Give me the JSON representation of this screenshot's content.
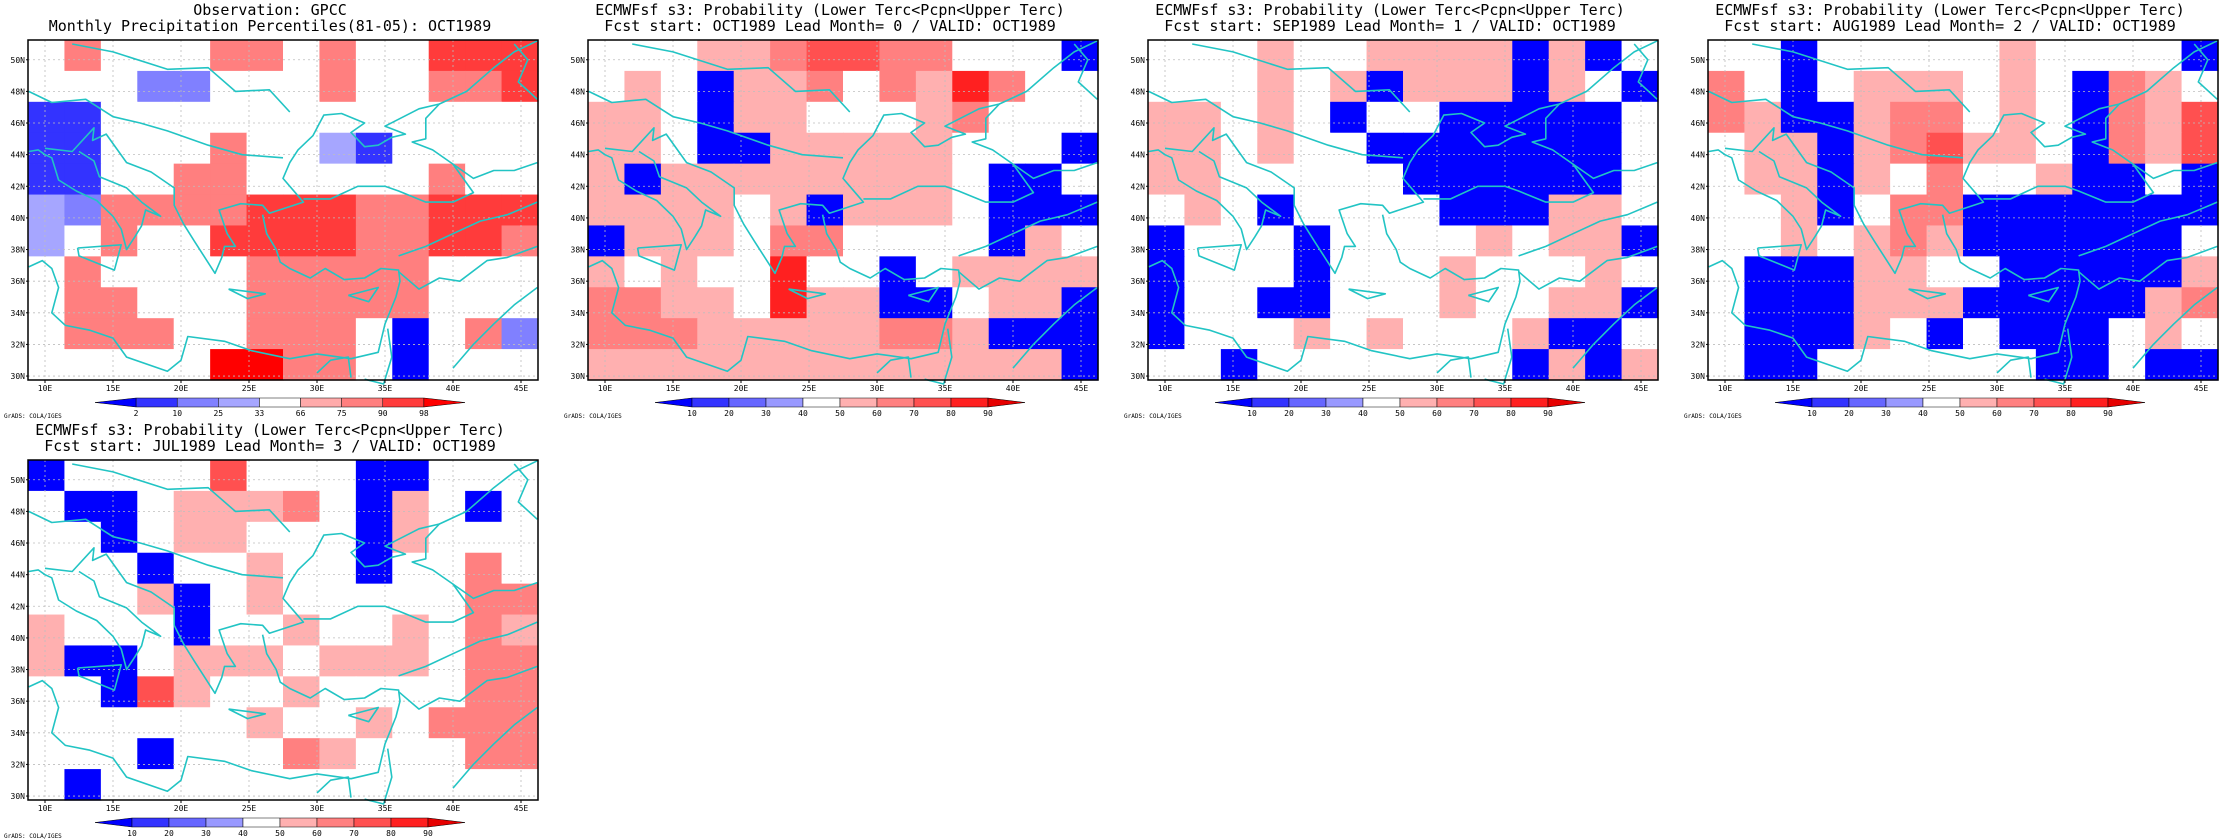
{
  "source_credit": "GrADS: COLA/IGES",
  "lat_labels": [
    "30N",
    "32N",
    "34N",
    "36N",
    "38N",
    "40N",
    "42N",
    "44N",
    "46N",
    "48N",
    "50N"
  ],
  "lon_labels": [
    "10E",
    "15E",
    "20E",
    "25E",
    "30E",
    "35E",
    "40E",
    "45E"
  ],
  "colors": {
    "coast": "#22c4c4",
    "grid": "#bdbdbd",
    "obs_scale": [
      "#0000ff",
      "#3333ff",
      "#8080ff",
      "#a6a6ff",
      "#ffffff",
      "#ffaaaa",
      "#ff7f7f",
      "#ff3b3b",
      "#ff0000"
    ],
    "fcst_scale": [
      "#0000ff",
      "#3333ff",
      "#6666ff",
      "#9999ff",
      "#ffffff",
      "#ffb0b0",
      "#ff8080",
      "#ff5050",
      "#ff2020",
      "#e60000"
    ]
  },
  "panels": [
    {
      "title_line1": "Observation: GPCC",
      "title_line2": "Monthly Precipitation Percentiles(81-05): OCT1989",
      "colorbar_labels": [
        "2",
        "10",
        "25",
        "33",
        "66",
        "75",
        "90",
        "98"
      ],
      "scale": "obs"
    },
    {
      "title_line1": "ECMWFsf s3: Probability (Lower Terc<Pcpn<Upper Terc)",
      "title_line2": "Fcst start: OCT1989  Lead Month= 0 / VALID: OCT1989",
      "colorbar_labels": [
        "10",
        "20",
        "30",
        "40",
        "50",
        "60",
        "70",
        "80",
        "90"
      ],
      "scale": "fcst"
    },
    {
      "title_line1": "ECMWFsf s3: Probability (Lower Terc<Pcpn<Upper Terc)",
      "title_line2": "Fcst start: SEP1989  Lead Month= 1 / VALID: OCT1989",
      "colorbar_labels": [
        "10",
        "20",
        "30",
        "40",
        "50",
        "60",
        "70",
        "80",
        "90"
      ],
      "scale": "fcst"
    },
    {
      "title_line1": "ECMWFsf s3: Probability (Lower Terc<Pcpn<Upper Terc)",
      "title_line2": "Fcst start: AUG1989  Lead Month= 2 / VALID: OCT1989",
      "colorbar_labels": [
        "10",
        "20",
        "30",
        "40",
        "50",
        "60",
        "70",
        "80",
        "90"
      ],
      "scale": "fcst"
    },
    {
      "title_line1": "ECMWFsf s3: Probability (Lower Terc<Pcpn<Upper Terc)",
      "title_line2": "Fcst start: JUL1989  Lead Month= 3 / VALID: OCT1989",
      "colorbar_labels": [
        "10",
        "20",
        "30",
        "40",
        "50",
        "60",
        "70",
        "80",
        "90"
      ],
      "scale": "fcst"
    }
  ]
}
